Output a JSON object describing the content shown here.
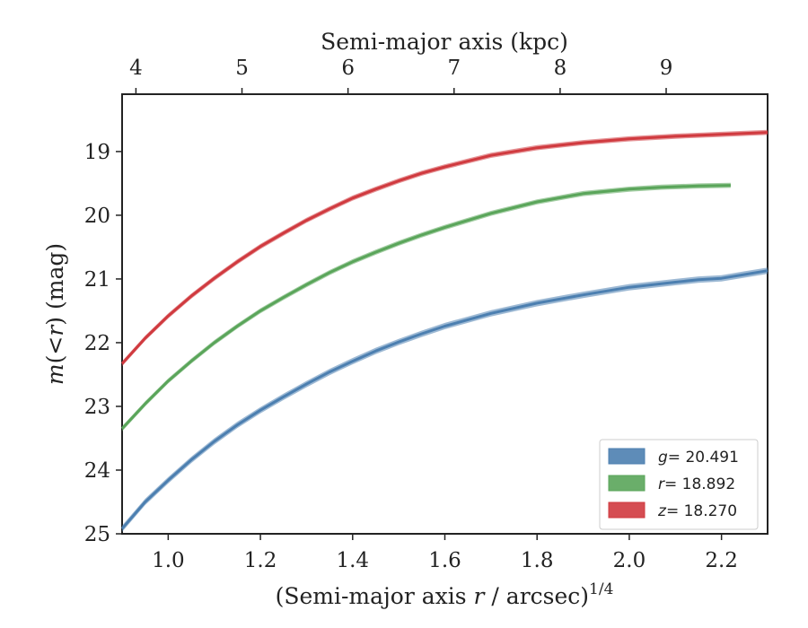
{
  "chart_data": {
    "type": "line",
    "xlabel": "(Semi-major axis r / arcsec)^{1/4}",
    "xlabel_parts": {
      "a": "(Semi-major axis ",
      "b": "r",
      "c": " / arcsec)",
      "d": "1/4"
    },
    "ylabel": "m(<r) (mag)",
    "ylabel_parts": {
      "a": "m",
      "b": "(",
      "c": "<",
      "d": "r",
      "e": ")",
      "f": " (mag)"
    },
    "top_xlabel": "Semi-major axis (kpc)",
    "xlim": [
      0.9,
      2.3
    ],
    "ylim": [
      25.0,
      18.1
    ],
    "y_inverted": true,
    "xticks": [
      1.0,
      1.2,
      1.4,
      1.6,
      1.8,
      2.0,
      2.2
    ],
    "xtick_labels": [
      "1.0",
      "1.2",
      "1.4",
      "1.6",
      "1.8",
      "2.0",
      "2.2"
    ],
    "yticks": [
      19,
      20,
      21,
      22,
      23,
      24,
      25
    ],
    "ytick_labels": [
      "19",
      "20",
      "21",
      "22",
      "23",
      "24",
      "25"
    ],
    "top_xticks_kpc": [
      4,
      5,
      6,
      7,
      8,
      9
    ],
    "top_xtick_labels": [
      "4",
      "5",
      "6",
      "7",
      "8",
      "9"
    ],
    "top_x_at_bottom_x": [
      0.93,
      1.16,
      1.39,
      1.62,
      1.85,
      2.08
    ],
    "grid": false,
    "legend_position": "lower-right",
    "series": [
      {
        "name": "g = 20.491",
        "label_var": "g",
        "label_value": "= 20.491",
        "color": "#4c7fb0",
        "band": 0.05,
        "x": [
          0.9,
          0.95,
          1.0,
          1.05,
          1.1,
          1.15,
          1.2,
          1.25,
          1.3,
          1.35,
          1.4,
          1.45,
          1.5,
          1.55,
          1.6,
          1.7,
          1.8,
          1.9,
          2.0,
          2.1,
          2.15,
          2.2,
          2.25,
          2.3
        ],
        "values": [
          24.92,
          24.5,
          24.16,
          23.84,
          23.55,
          23.29,
          23.06,
          22.85,
          22.65,
          22.46,
          22.29,
          22.13,
          21.99,
          21.86,
          21.74,
          21.54,
          21.38,
          21.25,
          21.13,
          21.05,
          21.01,
          20.99,
          20.93,
          20.87
        ]
      },
      {
        "name": "r = 18.892",
        "label_var": "r",
        "label_value": "= 18.892",
        "color": "#5aa55a",
        "band": 0.04,
        "x": [
          0.9,
          0.95,
          1.0,
          1.05,
          1.1,
          1.15,
          1.2,
          1.25,
          1.3,
          1.35,
          1.4,
          1.45,
          1.5,
          1.55,
          1.6,
          1.7,
          1.8,
          1.9,
          2.0,
          2.07,
          2.15,
          2.22
        ],
        "values": [
          23.35,
          22.96,
          22.6,
          22.29,
          22.0,
          21.74,
          21.5,
          21.29,
          21.09,
          20.9,
          20.73,
          20.58,
          20.44,
          20.31,
          20.19,
          19.97,
          19.79,
          19.66,
          19.59,
          19.56,
          19.54,
          19.53
        ]
      },
      {
        "name": "z = 18.270",
        "label_var": "z",
        "label_value": "= 18.270",
        "color": "#d03a3f",
        "band": 0.04,
        "x": [
          0.9,
          0.95,
          1.0,
          1.05,
          1.1,
          1.15,
          1.2,
          1.25,
          1.3,
          1.35,
          1.4,
          1.45,
          1.5,
          1.55,
          1.6,
          1.7,
          1.8,
          1.9,
          2.0,
          2.1,
          2.2,
          2.3
        ],
        "values": [
          22.33,
          21.93,
          21.58,
          21.27,
          20.99,
          20.73,
          20.49,
          20.28,
          20.08,
          19.9,
          19.73,
          19.59,
          19.46,
          19.34,
          19.24,
          19.06,
          18.94,
          18.86,
          18.8,
          18.76,
          18.73,
          18.7
        ]
      }
    ]
  }
}
